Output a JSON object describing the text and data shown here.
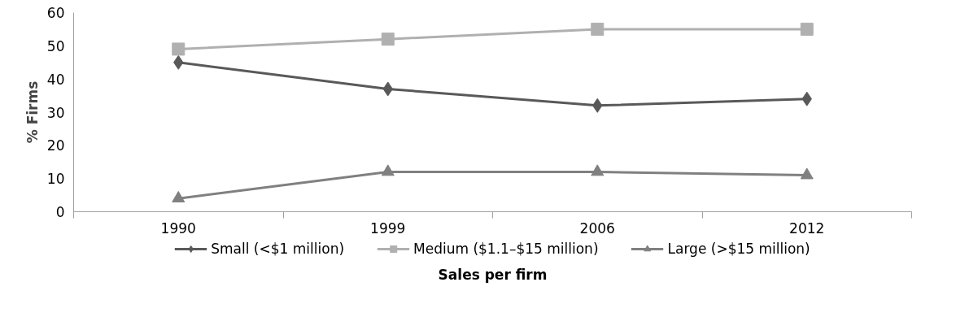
{
  "chart_data": {
    "type": "line",
    "xlabel": "Sales per firm",
    "ylabel": "% Firms",
    "categories": [
      "1990",
      "1999",
      "2006",
      "2012"
    ],
    "series": [
      {
        "name": "Small (<$1 million)",
        "color": "#595959",
        "marker": "diamond",
        "values": [
          45,
          37,
          32,
          34
        ]
      },
      {
        "name": "Medium ($1.1–$15 million)",
        "color": "#b0b0b0",
        "marker": "square",
        "values": [
          49,
          52,
          55,
          55
        ]
      },
      {
        "name": "Large (>$15 million)",
        "color": "#808080",
        "marker": "triangle",
        "values": [
          4,
          12,
          12,
          11
        ]
      }
    ],
    "ylim": [
      0,
      60
    ],
    "yticks": [
      0,
      10,
      20,
      30,
      40,
      50,
      60
    ],
    "grid": false,
    "legend": "bottom"
  }
}
